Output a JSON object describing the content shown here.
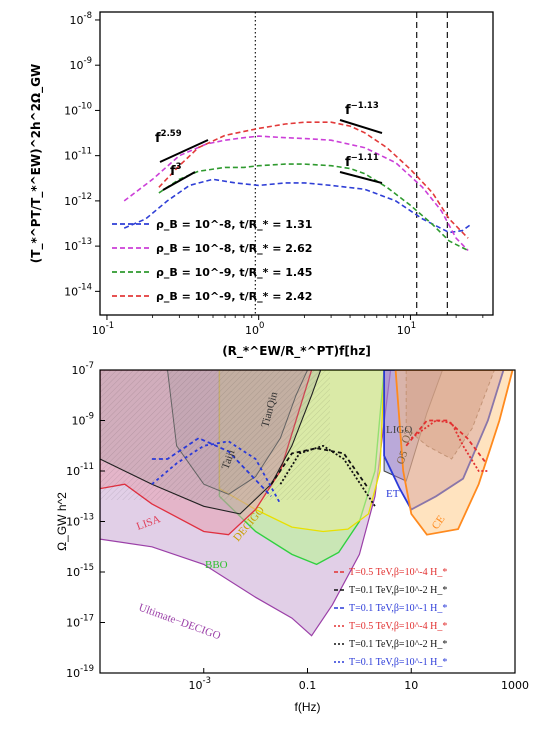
{
  "chart_data": [
    {
      "type": "line",
      "title": "",
      "xlabel": "(R_*^EW/R_*^PT)f[hz]",
      "ylabel": "(T_*^PT/T_*^EW)^2h^2Ω_GW",
      "xscale": "log",
      "yscale": "log",
      "xlim": [
        0.09,
        35
      ],
      "ylim": [
        3e-15,
        1.5e-08
      ],
      "xticks": [
        "10^-1",
        "10^0",
        "10^1"
      ],
      "yticks": [
        "10^-8",
        "10^-9",
        "10^-10",
        "10^-11",
        "10^-12",
        "10^-13",
        "10^-14"
      ],
      "vlines": [
        {
          "x": 0.95,
          "style": "dotted"
        },
        {
          "x": 11,
          "style": "dashed"
        },
        {
          "x": 17.5,
          "style": "dashed"
        }
      ],
      "series": [
        {
          "name": "ρ_B = 10^-8, t/R_* = 1.31",
          "color": "#2f3fd6",
          "x": [
            0.13,
            0.18,
            0.25,
            0.35,
            0.5,
            0.7,
            1,
            1.5,
            2,
            3,
            5,
            8,
            12,
            18,
            22,
            25
          ],
          "y": [
            2.5e-13,
            4e-13,
            1e-12,
            2.2e-12,
            3e-12,
            2.5e-12,
            2.2e-12,
            2.5e-12,
            2.5e-12,
            2.2e-12,
            1.8e-12,
            1e-12,
            4e-13,
            2e-13,
            2.2e-13,
            3e-13
          ]
        },
        {
          "name": "ρ_B = 10^-8, t/R_* = 2.62",
          "color": "#cc3fd8",
          "x": [
            0.13,
            0.2,
            0.3,
            0.45,
            0.6,
            0.8,
            1,
            1.5,
            2,
            3,
            5,
            8,
            12,
            16,
            20,
            24
          ],
          "y": [
            1e-12,
            3e-12,
            1e-11,
            1.8e-11,
            2.2e-11,
            2.5e-11,
            2.7e-11,
            2.5e-11,
            2.4e-11,
            2.2e-11,
            1.5e-11,
            7e-12,
            2e-12,
            6e-13,
            1.5e-13,
            8e-14
          ]
        },
        {
          "name": "ρ_B = 10^-9, t/R_* = 1.45",
          "color": "#2f9a2f",
          "x": [
            0.22,
            0.3,
            0.4,
            0.6,
            0.8,
            1,
            1.5,
            2,
            3,
            4,
            5,
            7,
            10,
            14,
            18,
            24
          ],
          "y": [
            1.5e-12,
            3e-12,
            4.5e-12,
            5.5e-12,
            5.5e-12,
            6e-12,
            6.5e-12,
            6.5e-12,
            6e-12,
            5.2e-12,
            4e-12,
            2e-12,
            8e-13,
            3e-13,
            1.3e-13,
            8e-14
          ]
        },
        {
          "name": "ρ_B = 10^-9, t/R_* = 2.42",
          "color": "#e23a3a",
          "x": [
            0.22,
            0.3,
            0.4,
            0.6,
            1,
            1.5,
            2,
            3,
            4,
            5,
            7,
            10,
            14,
            18,
            24
          ],
          "y": [
            2e-12,
            6e-12,
            1.5e-11,
            2.8e-11,
            4e-11,
            5e-11,
            5.5e-11,
            5.5e-11,
            4.5e-11,
            3.2e-11,
            1.5e-11,
            5e-12,
            1.5e-12,
            4e-13,
            1.5e-13
          ]
        }
      ],
      "annotations": [
        {
          "base": "f",
          "exp": "2.59"
        },
        {
          "base": "f",
          "exp": "3"
        },
        {
          "base": "f",
          "exp": "−1.13"
        },
        {
          "base": "f",
          "exp": "−1.11"
        }
      ],
      "legend_position": "bottom-left"
    },
    {
      "type": "area",
      "title": "",
      "xlabel": "f(Hz)",
      "ylabel": "Ω_GW h^2",
      "xscale": "log",
      "yscale": "log",
      "xlim": [
        1e-05,
        1000
      ],
      "ylim": [
        1e-19,
        1e-07
      ],
      "xticks": [
        "10^-3",
        "0.1",
        "10",
        "1000"
      ],
      "yticks": [
        "10^-7",
        "10^-9",
        "10^-11",
        "10^-13",
        "10^-15",
        "10^-17",
        "10^-19"
      ],
      "regions": [
        {
          "label": "LISA",
          "color": "#e0405a"
        },
        {
          "label": "Taiji",
          "color": "#555555"
        },
        {
          "label": "TianQin",
          "color": "#333333"
        },
        {
          "label": "DECIGO",
          "color": "#c8a000"
        },
        {
          "label": "BBO",
          "color": "#30c030"
        },
        {
          "label": "Ultimate−DECIGO",
          "color": "#9b40a8"
        },
        {
          "label": "LIGO",
          "color": "#777777"
        },
        {
          "label": "O2",
          "color": "#7a6040"
        },
        {
          "label": "O5",
          "color": "#7a6040"
        },
        {
          "label": "ET",
          "color": "#2a3ad8"
        },
        {
          "label": "CE",
          "color": "#ff8a1e"
        }
      ],
      "series": [
        {
          "name": "T=0.5 TeV,β=10^-4 H_*",
          "color": "#e23030",
          "style": "dashed"
        },
        {
          "name": "T=0.1 TeV,β=10^-2 H_*",
          "color": "#111111",
          "style": "dashed"
        },
        {
          "name": "T=0.1 TeV,β=10^-1 H_*",
          "color": "#2a3ad8",
          "style": "dashed"
        },
        {
          "name": "T=0.5 TeV,β=10^-4 H_*",
          "color": "#e23030",
          "style": "dotted"
        },
        {
          "name": "T=0.1 TeV,β=10^-2 H_*",
          "color": "#111111",
          "style": "dotted"
        },
        {
          "name": "T=0.1 TeV,β=10^-1 H_*",
          "color": "#2a3ad8",
          "style": "dotted"
        }
      ],
      "legend_position": "bottom-right"
    }
  ]
}
